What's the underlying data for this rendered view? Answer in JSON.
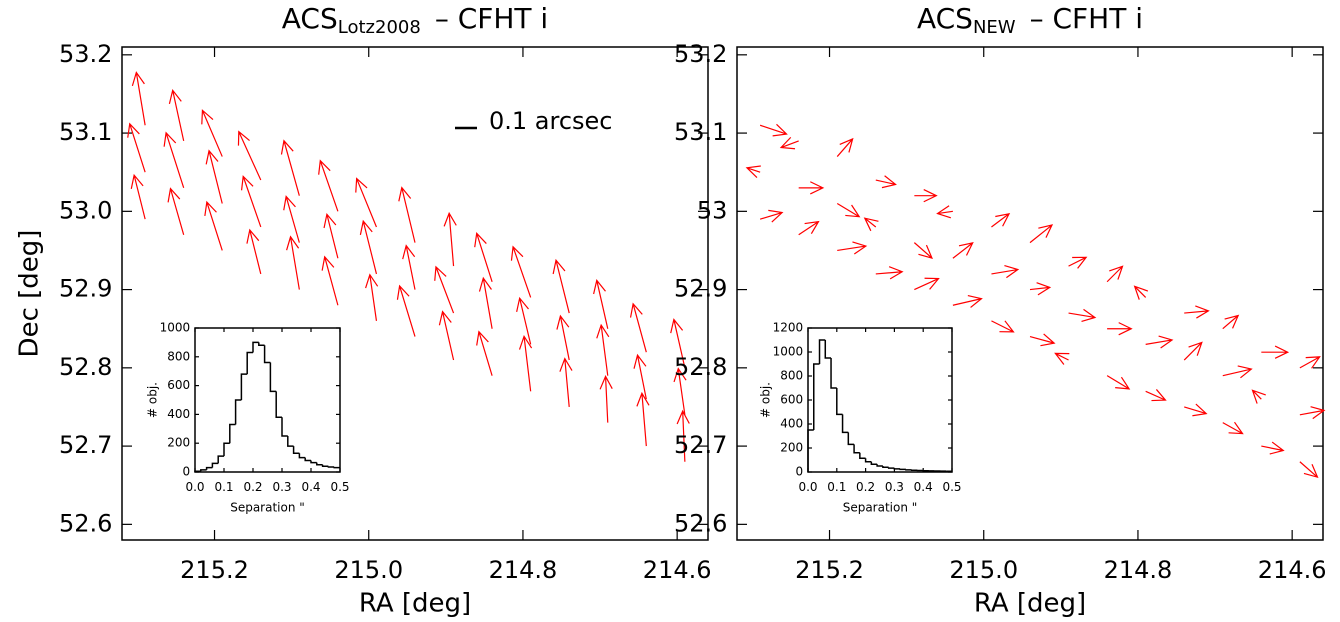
{
  "chart_data": [
    {
      "type": "quiver",
      "title": "ACS",
      "title_subscript": "Lotz2008",
      "title_suffix": "– CFHT i",
      "xlabel": "RA [deg]",
      "ylabel": "Dec [deg]",
      "color": "#ff0000",
      "xlim": [
        215.32,
        214.56
      ],
      "ylim": [
        52.58,
        53.21
      ],
      "xticks": [
        215.2,
        {
          "value": 215,
          "label": "215.0"
        },
        214.8,
        214.6
      ],
      "yticks": [
        52.6,
        52.7,
        52.8,
        52.9,
        {
          "value": 53,
          "label": "53.0"
        },
        53.1,
        53.2
      ],
      "scale_bar": {
        "value": 0.1,
        "label": "0.1 arcsec"
      },
      "x": [
        215.29,
        215.29,
        215.29,
        215.24,
        215.24,
        215.24,
        215.19,
        215.19,
        215.19,
        215.14,
        215.14,
        215.14,
        215.09,
        215.09,
        215.09,
        215.04,
        215.04,
        215.04,
        214.99,
        214.99,
        214.99,
        214.94,
        214.94,
        214.94,
        214.89,
        214.89,
        214.89,
        214.84,
        214.84,
        214.84,
        214.79,
        214.79,
        214.79,
        214.74,
        214.74,
        214.74,
        214.69,
        214.69,
        214.69,
        214.64,
        214.64,
        214.64,
        214.59,
        214.59,
        214.59
      ],
      "y": [
        52.99,
        53.05,
        53.11,
        52.97,
        53.03,
        53.09,
        52.95,
        53.01,
        53.07,
        52.92,
        52.98,
        53.04,
        52.9,
        52.96,
        53.02,
        52.88,
        52.94,
        53.0,
        52.86,
        52.92,
        52.98,
        52.84,
        52.9,
        52.96,
        52.81,
        52.87,
        52.93,
        52.79,
        52.85,
        52.91,
        52.77,
        52.83,
        52.89,
        52.75,
        52.81,
        52.87,
        52.73,
        52.79,
        52.85,
        52.7,
        52.76,
        52.82,
        52.68,
        52.74,
        52.8
      ],
      "u": [
        -0.05,
        -0.07,
        -0.04,
        -0.06,
        -0.08,
        -0.05,
        -0.07,
        -0.06,
        -0.09,
        -0.05,
        -0.08,
        -0.1,
        -0.04,
        -0.06,
        -0.07,
        -0.06,
        -0.05,
        -0.08,
        -0.03,
        -0.06,
        -0.09,
        -0.07,
        -0.04,
        -0.06,
        -0.05,
        -0.08,
        -0.02,
        -0.06,
        -0.04,
        -0.07,
        -0.03,
        -0.05,
        -0.08,
        -0.02,
        -0.04,
        -0.06,
        -0.01,
        -0.03,
        -0.05,
        -0.02,
        -0.04,
        -0.06,
        -0.01,
        -0.03,
        -0.05
      ],
      "v": [
        0.2,
        0.22,
        0.24,
        0.21,
        0.25,
        0.23,
        0.22,
        0.24,
        0.21,
        0.2,
        0.23,
        0.22,
        0.24,
        0.21,
        0.25,
        0.22,
        0.2,
        0.23,
        0.21,
        0.24,
        0.22,
        0.23,
        0.2,
        0.25,
        0.22,
        0.21,
        0.24,
        0.2,
        0.23,
        0.22,
        0.25,
        0.21,
        0.23,
        0.22,
        0.2,
        0.24,
        0.21,
        0.23,
        0.22,
        0.24,
        0.2,
        0.22,
        0.23,
        0.21,
        0.22
      ],
      "inset": {
        "type": "histogram",
        "xlabel": "Separation \"",
        "ylabel": "# obj.",
        "xlim": [
          0,
          0.5
        ],
        "ylim": [
          0,
          1000
        ],
        "xticks": [
          {
            "value": 0,
            "label": "0.0"
          },
          0.1,
          0.2,
          0.3,
          0.4,
          0.5
        ],
        "yticks": [
          0,
          200,
          400,
          600,
          800,
          1000
        ],
        "bins": [
          0,
          0.02,
          0.04,
          0.06,
          0.08,
          0.1,
          0.12,
          0.14,
          0.16,
          0.18,
          0.2,
          0.22,
          0.24,
          0.26,
          0.28,
          0.3,
          0.32,
          0.34,
          0.36,
          0.38,
          0.4,
          0.42,
          0.44,
          0.46,
          0.48,
          0.5
        ],
        "counts": [
          5,
          15,
          30,
          60,
          110,
          200,
          330,
          500,
          680,
          830,
          900,
          880,
          760,
          560,
          380,
          250,
          180,
          130,
          100,
          80,
          65,
          50,
          40,
          35,
          30
        ]
      }
    },
    {
      "type": "quiver",
      "title": "ACS",
      "title_subscript": "NEW",
      "title_suffix": "– CFHT i",
      "xlabel": "RA [deg]",
      "color": "#ff0000",
      "xlim": [
        215.32,
        214.56
      ],
      "ylim": [
        52.58,
        53.21
      ],
      "xticks": [
        215.2,
        {
          "value": 215,
          "label": "215.0"
        },
        214.8,
        214.6
      ],
      "yticks": [
        52.6,
        52.7,
        52.8,
        52.9,
        53,
        53.1,
        53.2
      ],
      "x": [
        215.29,
        215.29,
        215.29,
        215.24,
        215.24,
        215.24,
        215.19,
        215.19,
        215.19,
        215.14,
        215.14,
        215.14,
        215.09,
        215.09,
        215.09,
        215.04,
        215.04,
        215.04,
        214.99,
        214.99,
        214.99,
        214.94,
        214.94,
        214.94,
        214.89,
        214.89,
        214.89,
        214.84,
        214.84,
        214.84,
        214.79,
        214.79,
        214.79,
        214.74,
        214.74,
        214.74,
        214.69,
        214.69,
        214.69,
        214.64,
        214.64,
        214.64,
        214.59,
        214.59,
        214.59
      ],
      "y": [
        52.99,
        53.05,
        53.11,
        52.97,
        53.03,
        53.09,
        52.95,
        53.01,
        53.07,
        52.92,
        52.98,
        53.04,
        52.9,
        52.96,
        53.02,
        52.88,
        52.94,
        53.0,
        52.86,
        52.92,
        52.98,
        52.84,
        52.9,
        52.96,
        52.81,
        52.87,
        52.93,
        52.79,
        52.85,
        52.91,
        52.77,
        52.83,
        52.89,
        52.75,
        52.81,
        52.87,
        52.73,
        52.79,
        52.85,
        52.7,
        52.76,
        52.82,
        52.68,
        52.74,
        52.8
      ],
      "u": [
        0.1,
        -0.06,
        0.12,
        0.09,
        0.11,
        -0.08,
        0.13,
        0.1,
        0.07,
        0.12,
        -0.05,
        0.09,
        0.11,
        0.08,
        0.1,
        0.13,
        0.09,
        -0.07,
        0.1,
        0.12,
        0.08,
        0.11,
        0.09,
        0.1,
        -0.06,
        0.12,
        0.08,
        0.1,
        0.11,
        0.07,
        0.09,
        0.12,
        -0.05,
        0.1,
        0.08,
        0.11,
        0.09,
        0.13,
        0.07,
        0.1,
        -0.04,
        0.12,
        0.08,
        0.11,
        0.09
      ],
      "v": [
        0.03,
        0.02,
        -0.04,
        0.06,
        0.0,
        -0.03,
        0.02,
        -0.06,
        0.08,
        0.01,
        0.04,
        -0.02,
        0.05,
        -0.07,
        0.0,
        0.03,
        0.07,
        -0.01,
        -0.05,
        0.02,
        0.06,
        -0.03,
        0.01,
        0.08,
        0.03,
        -0.02,
        0.04,
        -0.06,
        0.0,
        0.07,
        -0.04,
        0.02,
        0.05,
        -0.03,
        0.08,
        0.01,
        -0.05,
        0.03,
        0.06,
        -0.02,
        0.04,
        0.0,
        -0.07,
        0.02,
        0.05
      ],
      "inset": {
        "type": "histogram",
        "xlabel": "Separation \"",
        "ylabel": "# obj.",
        "xlim": [
          0,
          0.5
        ],
        "ylim": [
          0,
          1200
        ],
        "xticks": [
          {
            "value": 0,
            "label": "0.0"
          },
          0.1,
          0.2,
          0.3,
          0.4,
          0.5
        ],
        "yticks": [
          0,
          200,
          400,
          600,
          800,
          1000,
          1200
        ],
        "bins": [
          0,
          0.02,
          0.04,
          0.06,
          0.08,
          0.1,
          0.12,
          0.14,
          0.16,
          0.18,
          0.2,
          0.22,
          0.24,
          0.26,
          0.28,
          0.3,
          0.32,
          0.34,
          0.36,
          0.38,
          0.4,
          0.42,
          0.44,
          0.46,
          0.48,
          0.5
        ],
        "counts": [
          350,
          900,
          1100,
          950,
          700,
          480,
          330,
          230,
          160,
          115,
          85,
          65,
          50,
          40,
          32,
          26,
          22,
          18,
          15,
          12,
          10,
          9,
          8,
          7,
          6
        ]
      }
    }
  ]
}
